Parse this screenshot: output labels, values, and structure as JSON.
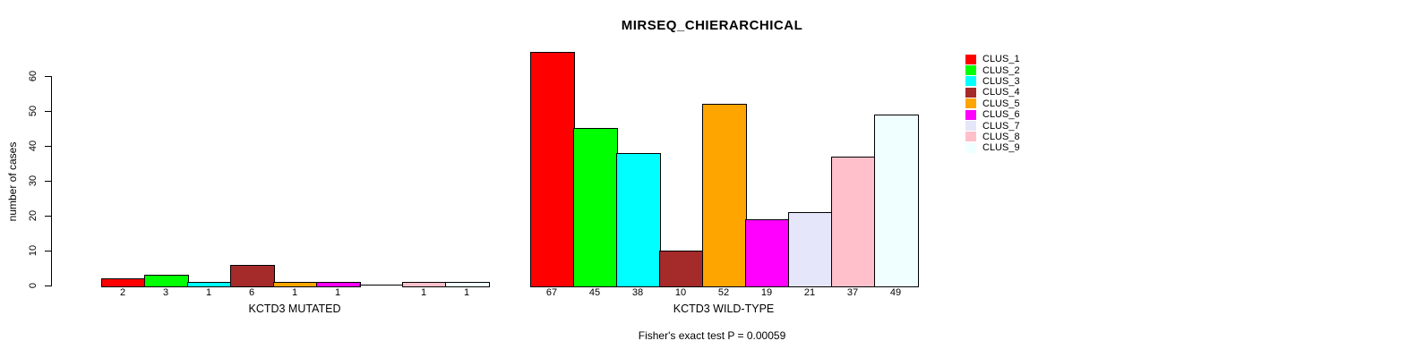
{
  "title": "MIRSEQ_CHIERARCHICAL",
  "chart_data": {
    "type": "bar",
    "title": "MIRSEQ_CHIERARCHICAL",
    "xlabel": "",
    "ylabel": "number of cases",
    "ylim": [
      0,
      67
    ],
    "yticks": [
      0,
      10,
      20,
      30,
      40,
      50,
      60
    ],
    "grid": false,
    "legend_position": "right",
    "categories": [
      "CLUS_1",
      "CLUS_2",
      "CLUS_3",
      "CLUS_4",
      "CLUS_5",
      "CLUS_6",
      "CLUS_7",
      "CLUS_8",
      "CLUS_9"
    ],
    "colors": [
      "#FF0000",
      "#00FF00",
      "#00FFFF",
      "#A52A2A",
      "#FFA500",
      "#FF00FF",
      "#E6E6FA",
      "#FFC0CB",
      "#F0FFFF"
    ],
    "groups": [
      {
        "label": "KCTD3 MUTATED",
        "values": [
          2,
          3,
          1,
          6,
          1,
          1,
          0,
          1,
          1
        ]
      },
      {
        "label": "KCTD3 WILD-TYPE",
        "values": [
          67,
          45,
          38,
          10,
          52,
          19,
          21,
          37,
          49
        ]
      }
    ],
    "bar_value_labels_shown": true,
    "annotation": "Fisher's exact test P = 0.00059"
  }
}
